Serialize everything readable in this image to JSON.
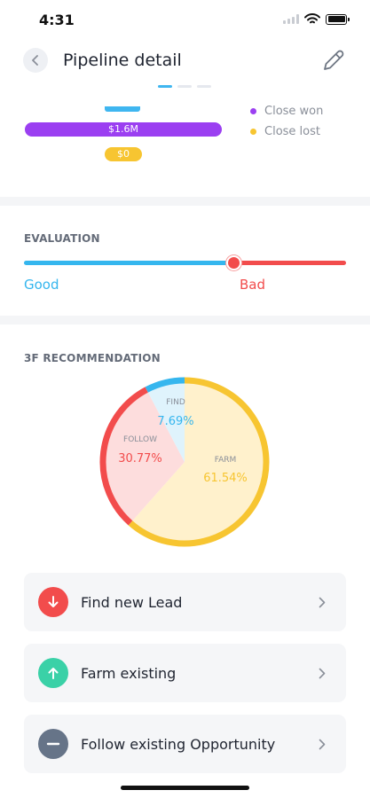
{
  "status_bar": {
    "time": "4:31"
  },
  "header": {
    "title": "Pipeline detail"
  },
  "pager": {
    "count": 3,
    "active": 0
  },
  "pipeline": {
    "bars": [
      {
        "label": "$1.6M",
        "color": "#9b3ff1"
      },
      {
        "label": "$0",
        "color": "#f7c531"
      }
    ],
    "legend": [
      {
        "label": "Close won",
        "color": "#9b3ff1"
      },
      {
        "label": "Close lost",
        "color": "#f7c531"
      }
    ]
  },
  "evaluation": {
    "label": "EVALUATION",
    "good_label": "Good",
    "bad_label": "Bad",
    "value": 0.65,
    "colors": {
      "good": "#35b6ee",
      "bad": "#f24c4c"
    }
  },
  "recommendation": {
    "label": "3F RECOMMENDATION",
    "slices": [
      {
        "name": "FIND",
        "value": 7.69,
        "label": "7.69%",
        "fill": "#dff3fc",
        "stroke": "#35b6ee",
        "text": "#35b6ee"
      },
      {
        "name": "FOLLOW",
        "value": 30.77,
        "label": "30.77%",
        "fill": "#fddddd",
        "stroke": "#f24c4c",
        "text": "#f24c4c"
      },
      {
        "name": "FARM",
        "value": 61.54,
        "label": "61.54%",
        "fill": "#fff1cc",
        "stroke": "#f7c531",
        "text": "#f7c531"
      }
    ]
  },
  "actions": [
    {
      "label": "Find new Lead",
      "icon": "arrow-down-icon",
      "color": "#f24c4c"
    },
    {
      "label": "Farm existing",
      "icon": "arrow-up-icon",
      "color": "#3ad1a7"
    },
    {
      "label": "Follow existing Opportunity",
      "icon": "minus-icon",
      "color": "#667488"
    }
  ]
}
